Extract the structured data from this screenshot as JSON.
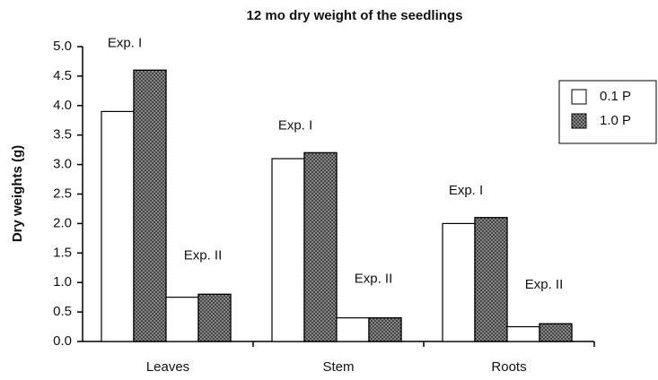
{
  "chart_data": {
    "type": "grouped_bar",
    "title": "12 mo dry weight of the seedlings",
    "y_label": "Dry weights (g)",
    "categories": [
      "Leaves",
      "Stem",
      "Roots"
    ],
    "groups": [
      "Exp. I",
      "Exp. II"
    ],
    "series": [
      {
        "name": "0.1 P",
        "color": "#ffffff",
        "values": [
          [
            3.9,
            0.75
          ],
          [
            3.1,
            0.4
          ],
          [
            2.0,
            0.25
          ]
        ]
      },
      {
        "name": "1.0 P",
        "color": "#9a9a9a",
        "values": [
          [
            4.6,
            0.8
          ],
          [
            3.2,
            0.4
          ],
          [
            2.1,
            0.3
          ]
        ]
      }
    ],
    "ylim": [
      0,
      5
    ],
    "yticks": [
      {
        "value": 0,
        "label": "0.0"
      },
      0.5,
      {
        "value": 1,
        "label": "1.0"
      },
      1.5,
      {
        "value": 2,
        "label": "2.0"
      },
      2.5,
      {
        "value": 3,
        "label": "3.0"
      },
      3.5,
      {
        "value": 4,
        "label": "4.0"
      },
      4.5,
      {
        "value": 5,
        "label": "5.0"
      }
    ],
    "grid": false,
    "legend": "upper right"
  }
}
